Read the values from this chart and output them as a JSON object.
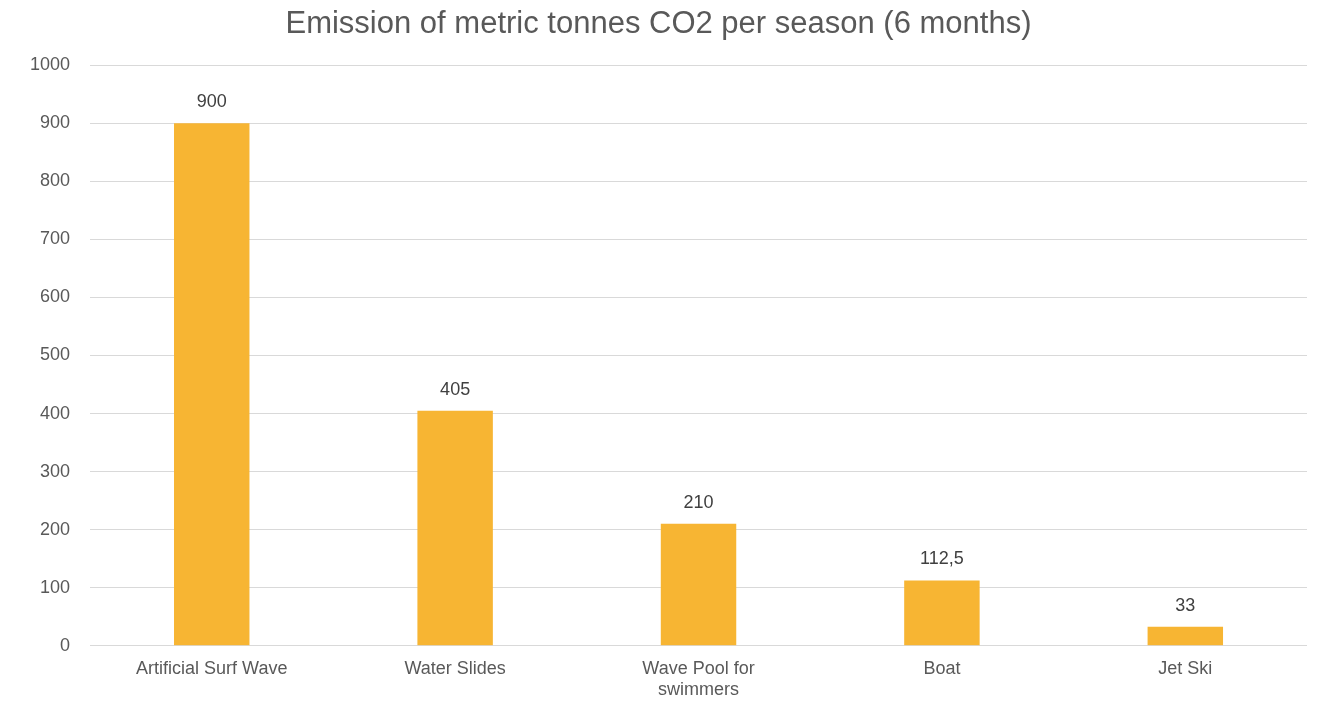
{
  "chart_data": {
    "type": "bar",
    "title": "Emission of metric tonnes CO2 per season (6 months)",
    "categories": [
      "Artificial Surf Wave",
      "Water Slides",
      "Wave Pool for swimmers",
      "Boat",
      "Jet Ski"
    ],
    "values": [
      900,
      405,
      210,
      112.5,
      33
    ],
    "value_labels": [
      "900",
      "405",
      "210",
      "112,5",
      "33"
    ],
    "color": "#f7b533",
    "ylim": [
      0,
      1000
    ],
    "yticks": [
      0,
      100,
      200,
      300,
      400,
      500,
      600,
      700,
      800,
      900,
      1000
    ],
    "grid": "y",
    "legend": false
  }
}
